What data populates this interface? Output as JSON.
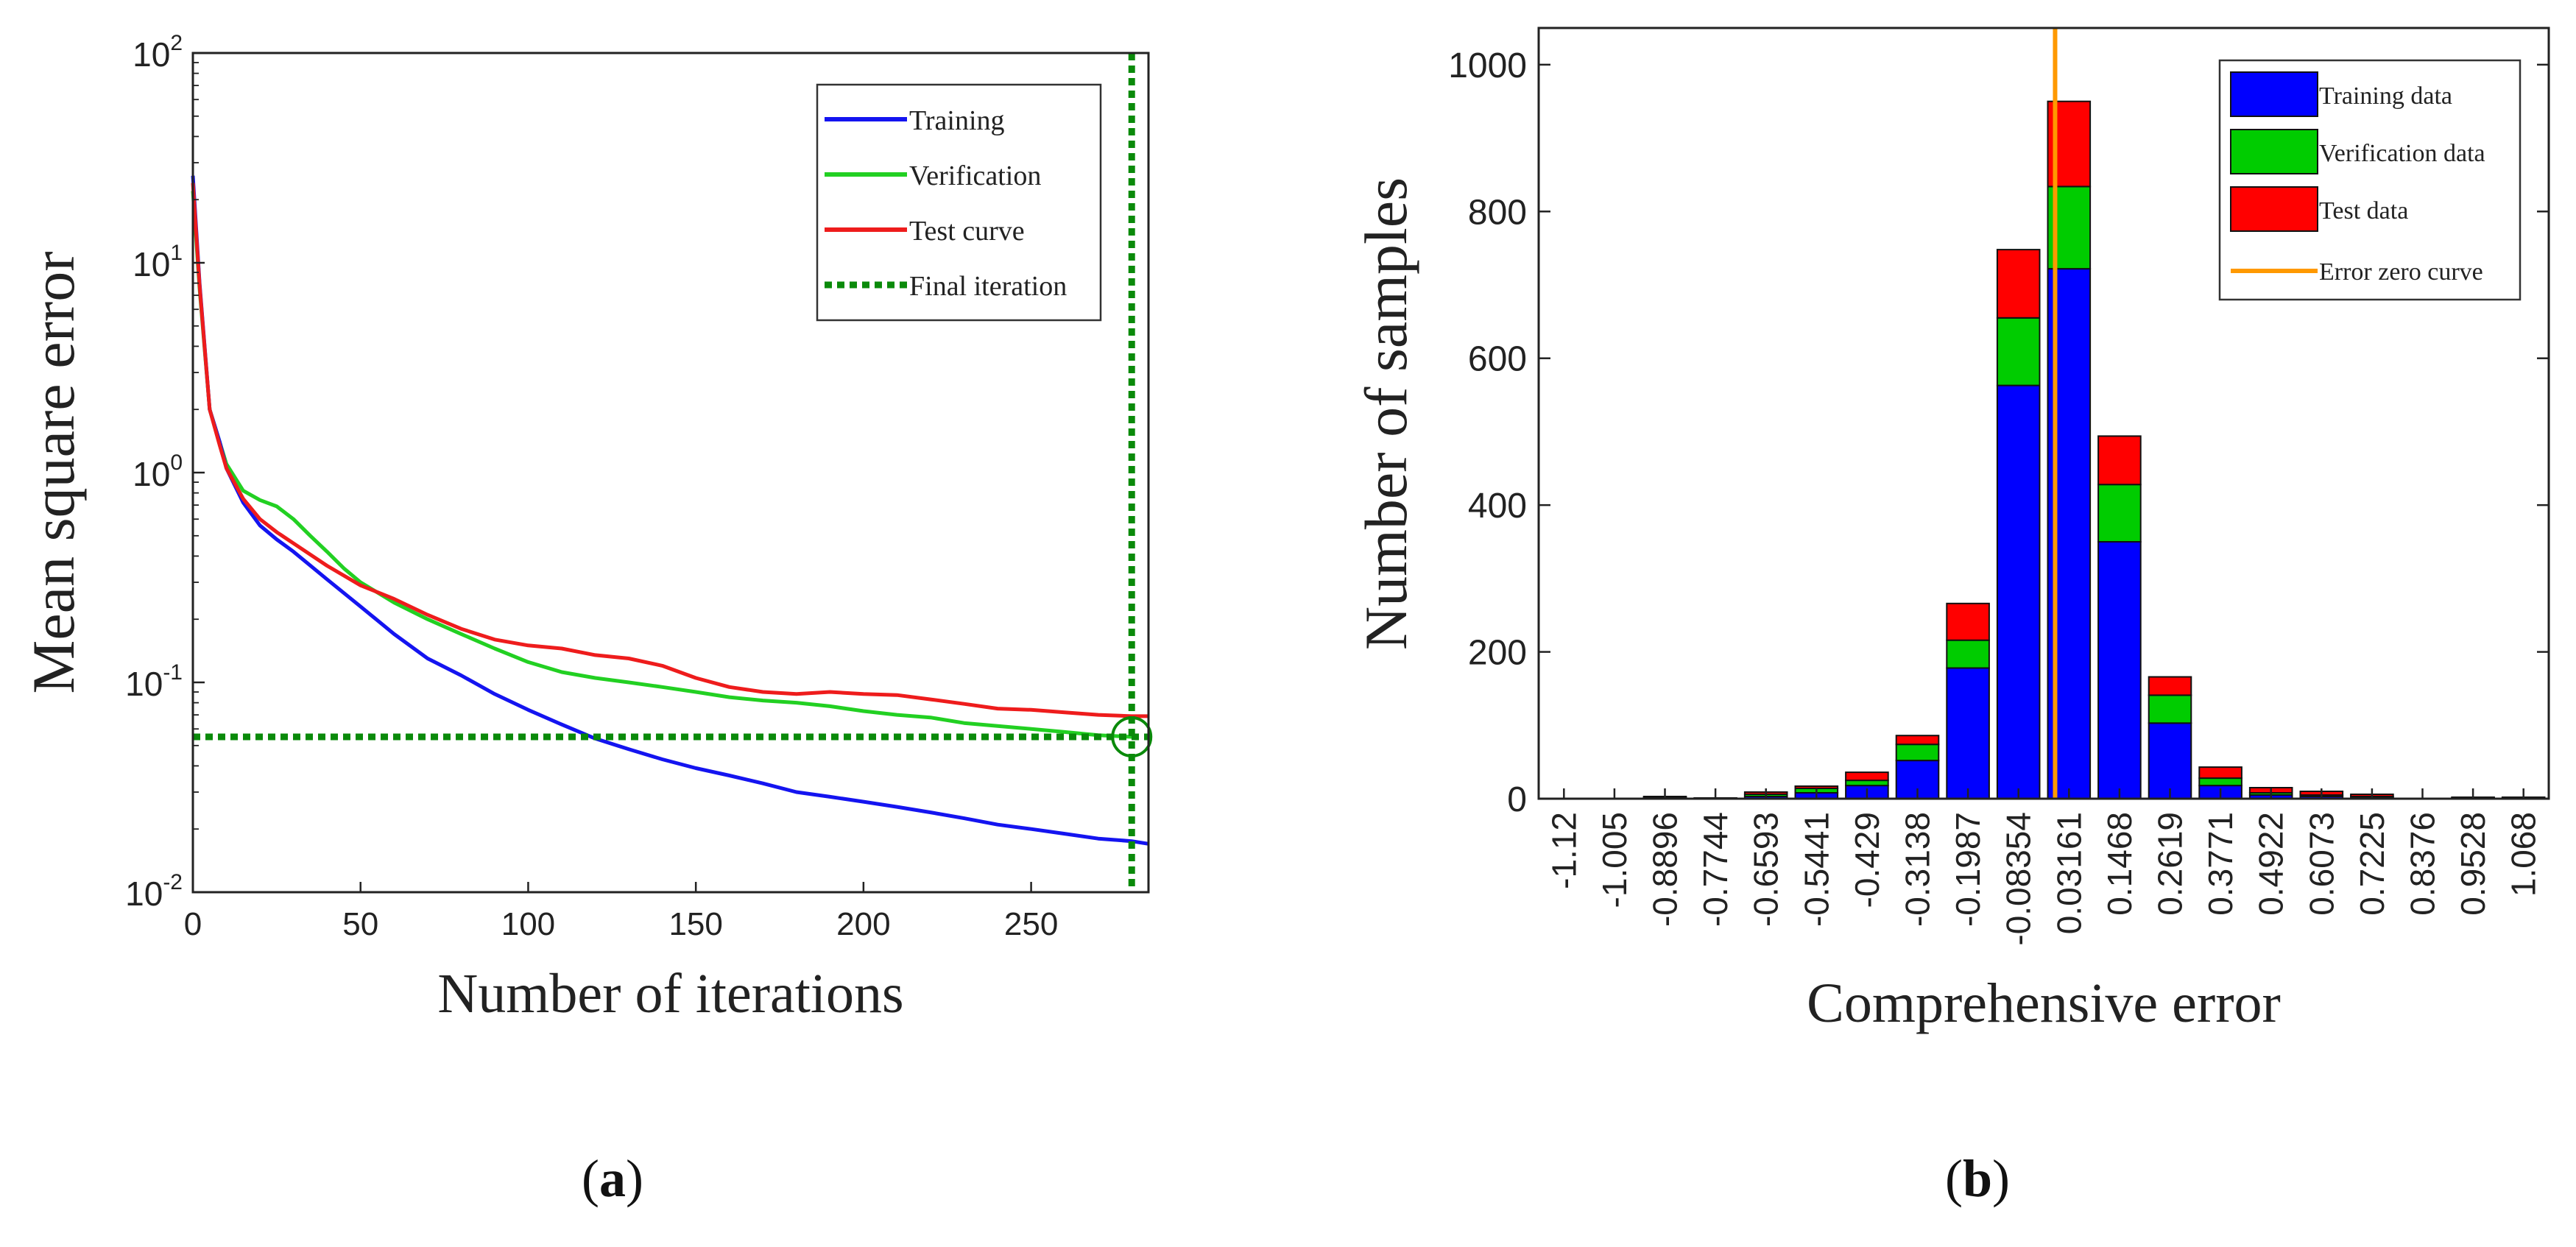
{
  "panels": {
    "a": {
      "label_open": "(",
      "label_letter": "a",
      "label_close": ")"
    },
    "b": {
      "label_open": "(",
      "label_letter": "b",
      "label_close": ")"
    }
  },
  "chart_data": [
    {
      "type": "line",
      "yscale": "log",
      "title": "",
      "xlabel": "Number of iterations",
      "ylabel": "Mean square error",
      "xlim": [
        0,
        285
      ],
      "ylim": [
        0.01,
        100
      ],
      "xticks": [
        0,
        50,
        100,
        150,
        200,
        250
      ],
      "yticks": [
        {
          "value": 0.01,
          "base": "10",
          "exp": "-2"
        },
        {
          "value": 0.1,
          "base": "10",
          "exp": "-1"
        },
        {
          "value": 1,
          "base": "10",
          "exp": "0"
        },
        {
          "value": 10,
          "base": "10",
          "exp": "1"
        },
        {
          "value": 100,
          "base": "10",
          "exp": "2"
        }
      ],
      "legend_position": "top-right",
      "series": [
        {
          "name": "Training",
          "color": "#1414f0",
          "x": [
            0,
            2,
            5,
            8,
            10,
            15,
            20,
            25,
            30,
            40,
            50,
            60,
            70,
            80,
            90,
            100,
            110,
            120,
            130,
            140,
            150,
            160,
            170,
            180,
            190,
            200,
            210,
            220,
            230,
            240,
            250,
            260,
            270,
            280,
            285
          ],
          "y": [
            26,
            8,
            2.0,
            1.4,
            1.05,
            0.72,
            0.56,
            0.48,
            0.42,
            0.31,
            0.23,
            0.17,
            0.13,
            0.108,
            0.088,
            0.074,
            0.063,
            0.054,
            0.048,
            0.043,
            0.039,
            0.036,
            0.033,
            0.03,
            0.0285,
            0.027,
            0.0255,
            0.024,
            0.0225,
            0.021,
            0.02,
            0.019,
            0.018,
            0.0175,
            0.017
          ]
        },
        {
          "name": "Verification",
          "color": "#22d022",
          "x": [
            0,
            2,
            5,
            8,
            10,
            15,
            20,
            25,
            30,
            35,
            40,
            45,
            50,
            60,
            70,
            80,
            90,
            100,
            110,
            120,
            130,
            140,
            150,
            160,
            170,
            180,
            190,
            200,
            210,
            220,
            230,
            240,
            250,
            260,
            270,
            280
          ],
          "y": [
            22,
            7.5,
            2.0,
            1.4,
            1.1,
            0.82,
            0.74,
            0.69,
            0.6,
            0.5,
            0.42,
            0.35,
            0.3,
            0.24,
            0.2,
            0.17,
            0.145,
            0.125,
            0.112,
            0.105,
            0.1,
            0.095,
            0.09,
            0.085,
            0.082,
            0.08,
            0.077,
            0.073,
            0.07,
            0.068,
            0.064,
            0.062,
            0.06,
            0.058,
            0.056,
            0.055
          ]
        },
        {
          "name": "Test curve",
          "color": "#ee1c1c",
          "x": [
            0,
            2,
            5,
            8,
            10,
            15,
            20,
            25,
            30,
            40,
            50,
            60,
            70,
            80,
            90,
            100,
            110,
            120,
            130,
            140,
            150,
            160,
            170,
            180,
            190,
            200,
            210,
            220,
            230,
            240,
            250,
            260,
            270,
            280,
            285
          ],
          "y": [
            24,
            7.8,
            2.0,
            1.35,
            1.05,
            0.75,
            0.6,
            0.52,
            0.46,
            0.36,
            0.29,
            0.25,
            0.21,
            0.18,
            0.16,
            0.15,
            0.145,
            0.135,
            0.13,
            0.12,
            0.105,
            0.095,
            0.09,
            0.088,
            0.09,
            0.088,
            0.087,
            0.083,
            0.079,
            0.075,
            0.074,
            0.072,
            0.07,
            0.069,
            0.069
          ]
        }
      ],
      "final_iteration": {
        "name": "Final iteration",
        "color": "#0a8a0a",
        "x": 280,
        "y": 0.055
      }
    },
    {
      "type": "bar",
      "stacked": true,
      "title": "",
      "xlabel": "Comprehensive error",
      "ylabel": "Number of samples",
      "ylim": [
        0,
        1050
      ],
      "yticks": [
        0,
        200,
        400,
        600,
        800,
        1000
      ],
      "categories": [
        "-1.12",
        "-1.005",
        "-0.8896",
        "-0.7744",
        "-0.6593",
        "-0.5441",
        "-0.429",
        "-0.3138",
        "-0.1987",
        "-0.08354",
        "0.03161",
        "0.1468",
        "0.2619",
        "0.3771",
        "0.4922",
        "0.6073",
        "0.7225",
        "0.8376",
        "0.9528",
        "1.068"
      ],
      "legend_position": "top-right",
      "series": [
        {
          "name": "Training data",
          "color": "#0000ff",
          "values": [
            0,
            0,
            1,
            0,
            3,
            8,
            18,
            52,
            178,
            563,
            722,
            350,
            103,
            18,
            5,
            3,
            2,
            0,
            1,
            1
          ]
        },
        {
          "name": "Verification data",
          "color": "#00cc00",
          "values": [
            0,
            0,
            1,
            0,
            3,
            6,
            7,
            22,
            38,
            92,
            112,
            78,
            38,
            10,
            3,
            2,
            1,
            0,
            0,
            0
          ]
        },
        {
          "name": "Test data",
          "color": "#ff0000",
          "values": [
            0,
            0,
            1,
            1,
            3,
            3,
            11,
            12,
            50,
            93,
            116,
            66,
            25,
            15,
            7,
            5,
            3,
            0,
            1,
            1
          ]
        }
      ],
      "zero_line": {
        "name": "Error zero curve",
        "color": "#ff9900",
        "x": 0
      }
    }
  ]
}
